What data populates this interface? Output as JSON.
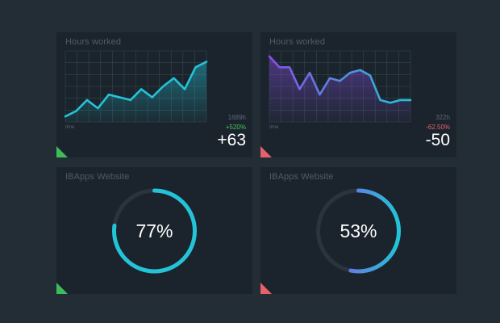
{
  "cards": [
    {
      "title": "Hours worked",
      "time_label": "time",
      "total": "1689h",
      "percent": "+520%",
      "delta": "+63",
      "trend": "up"
    },
    {
      "title": "Hours worked",
      "time_label": "time",
      "total": "322h",
      "percent": "-62.50%",
      "delta": "-50",
      "trend": "down"
    },
    {
      "title": "IBApps Website",
      "percent_label": "77%",
      "progress": 0.77
    },
    {
      "title": "IBApps Website",
      "percent_label": "53%",
      "progress": 0.53
    }
  ],
  "chart_data": [
    {
      "type": "line",
      "x": [
        1,
        2,
        3,
        4,
        5,
        6,
        7,
        8,
        9,
        10,
        11,
        12,
        13,
        14
      ],
      "values": [
        2,
        4,
        8,
        5,
        10,
        9,
        8,
        12,
        9,
        13,
        16,
        12,
        20,
        22
      ],
      "ylim": [
        0,
        26
      ],
      "grid": true
    },
    {
      "type": "line",
      "x": [
        1,
        2,
        3,
        4,
        5,
        6,
        7,
        8,
        9,
        10,
        11,
        12,
        13,
        14,
        15
      ],
      "values": [
        24,
        20,
        20,
        12,
        18,
        10,
        16,
        15,
        18,
        19,
        17,
        8,
        7,
        8,
        8
      ],
      "ylim": [
        0,
        26
      ],
      "grid": true
    }
  ],
  "colors": {
    "background": "#232d36",
    "card": "#1b242c",
    "cyan": "#23c3d8",
    "purple": "#8a4fe8",
    "green": "#3ebc5a",
    "red": "#e8606a",
    "grid": "#2e4a4e",
    "track": "#2a343d"
  }
}
